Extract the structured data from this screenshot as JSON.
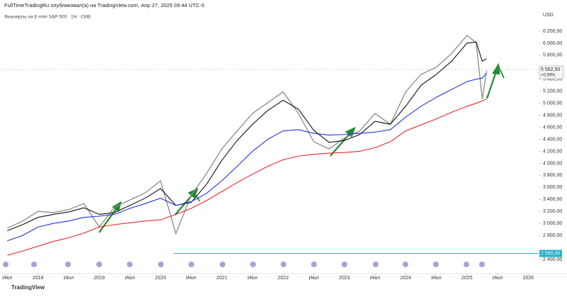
{
  "header": "FullTimeTradingRu опубликовал(а) на TradingView.com, Апр 27, 2025 09:44 UTC-5",
  "footer": "TradingView",
  "chart_data": {
    "type": "line",
    "title": "Фьючерсы на E-mini S&P 500 · 1Н · CME",
    "currency": "USD",
    "x": [
      2017.5,
      2017.75,
      2018,
      2018.25,
      2018.5,
      2018.75,
      2019,
      2019.25,
      2019.5,
      2019.75,
      2020,
      2020.25,
      2020.5,
      2020.75,
      2021,
      2021.25,
      2021.5,
      2021.75,
      2022,
      2022.25,
      2022.5,
      2022.75,
      2023,
      2023.25,
      2023.5,
      2023.75,
      2024,
      2024.25,
      2024.5,
      2024.75,
      2025,
      2025.15,
      2025.25,
      2025.32
    ],
    "series": [
      {
        "color": "#8a8a8a",
        "values": [
          2920,
          3040,
          3200,
          3180,
          3230,
          3330,
          2940,
          3270,
          3390,
          3510,
          3710,
          2830,
          3470,
          3830,
          4240,
          4540,
          4830,
          5010,
          5190,
          4830,
          4360,
          4240,
          4420,
          4540,
          4830,
          4650,
          5190,
          5480,
          5600,
          5830,
          6130,
          6010,
          5070,
          5540
        ]
      },
      {
        "color": "#111111",
        "values": [
          2880,
          2980,
          3100,
          3150,
          3190,
          3260,
          3150,
          3180,
          3300,
          3420,
          3580,
          3300,
          3350,
          3650,
          4050,
          4380,
          4650,
          4880,
          5050,
          4900,
          4550,
          4350,
          4380,
          4480,
          4700,
          4650,
          4950,
          5300,
          5480,
          5700,
          6000,
          6020,
          5700,
          5740
        ]
      },
      {
        "color": "#2234d8",
        "values": [
          2710,
          2800,
          2940,
          3000,
          3040,
          3100,
          3120,
          3150,
          3250,
          3330,
          3420,
          3300,
          3360,
          3500,
          3710,
          3950,
          4200,
          4400,
          4540,
          4560,
          4500,
          4470,
          4480,
          4500,
          4520,
          4560,
          4770,
          4950,
          5100,
          5230,
          5360,
          5400,
          5420,
          5500
        ]
      },
      {
        "color": "#e8262a",
        "values": [
          2470,
          2540,
          2620,
          2700,
          2760,
          2840,
          2940,
          2980,
          3010,
          3040,
          3060,
          3150,
          3250,
          3380,
          3530,
          3680,
          3820,
          3950,
          4060,
          4120,
          4150,
          4170,
          4180,
          4200,
          4260,
          4360,
          4540,
          4640,
          4740,
          4850,
          4950,
          5000,
          5040,
          5070
        ]
      }
    ],
    "xlim": [
      2017.38,
      2026.17
    ],
    "ylim": [
      2294,
      6365
    ],
    "xticks": [
      {
        "value": 2017.5,
        "label": "Июл"
      },
      {
        "value": 2018,
        "label": "2018"
      },
      {
        "value": 2018.5,
        "label": "Июл"
      },
      {
        "value": 2019,
        "label": "2019"
      },
      {
        "value": 2019.5,
        "label": "Июл"
      },
      {
        "value": 2020,
        "label": "2020"
      },
      {
        "value": 2020.5,
        "label": "Июл"
      },
      {
        "value": 2021,
        "label": "2021"
      },
      {
        "value": 2021.5,
        "label": "Июл"
      },
      {
        "value": 2022,
        "label": "2022"
      },
      {
        "value": 2022.5,
        "label": "Июл"
      },
      {
        "value": 2023,
        "label": "2023"
      },
      {
        "value": 2023.5,
        "label": "Июл"
      },
      {
        "value": 2024,
        "label": "2024"
      },
      {
        "value": 2024.5,
        "label": "Июл"
      },
      {
        "value": 2025,
        "label": "2025"
      },
      {
        "value": 2025.5,
        "label": "Июл"
      },
      {
        "value": 2026,
        "label": "2026"
      }
    ],
    "yticks": [
      {
        "value": 6200,
        "label": "6 200,00"
      },
      {
        "value": 6000,
        "label": "6 000,00"
      },
      {
        "value": 5800,
        "label": "5 800,00"
      },
      {
        "value": 5400,
        "label": "5 400,00"
      },
      {
        "value": 5200,
        "label": "5 200,00"
      },
      {
        "value": 5000,
        "label": "5 000,00"
      },
      {
        "value": 4800,
        "label": "4 800,00"
      },
      {
        "value": 4600,
        "label": "4 600,00"
      },
      {
        "value": 4400,
        "label": "4 400,00"
      },
      {
        "value": 4200,
        "label": "4 200,00"
      },
      {
        "value": 4000,
        "label": "4 000,00"
      },
      {
        "value": 3800,
        "label": "3 800,00"
      },
      {
        "value": 3600,
        "label": "3 600,00"
      },
      {
        "value": 3400,
        "label": "3 400,00"
      },
      {
        "value": 3200,
        "label": "3 200,00"
      },
      {
        "value": 3000,
        "label": "3 000,00"
      },
      {
        "value": 2800,
        "label": "2 800,00"
      },
      {
        "value": 2400,
        "label": "2 400,00"
      }
    ],
    "last_price": {
      "value": 5562.5,
      "label": "5 562,50"
    },
    "change_label": "+0,59%",
    "level": {
      "value": 2500,
      "label": "2 500,00",
      "color": "#22b0c8"
    }
  }
}
